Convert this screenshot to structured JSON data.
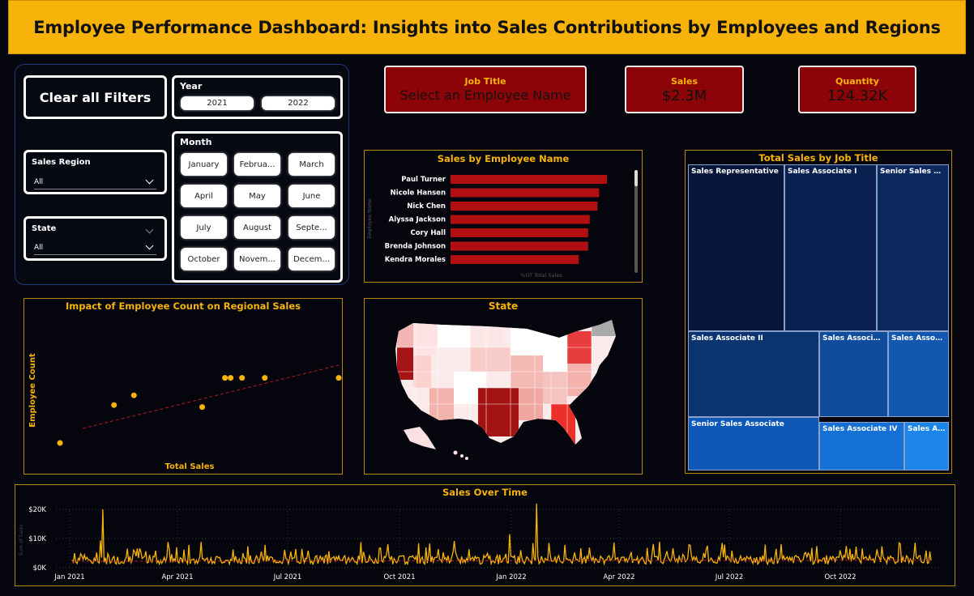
{
  "title": "Employee Performance Dashboard: Insights into Sales Contributions by Employees and Regions",
  "filters": {
    "clear_label": "Clear all Filters",
    "year": {
      "title": "Year",
      "options": [
        "2021",
        "2022"
      ]
    },
    "month": {
      "title": "Month",
      "options": [
        "January",
        "Februa...",
        "March",
        "April",
        "May",
        "June",
        "July",
        "August",
        "Septe...",
        "October",
        "Novem...",
        "Decem..."
      ]
    },
    "sales_region": {
      "title": "Sales Region",
      "value": "All"
    },
    "state": {
      "title": "State",
      "value": "All"
    }
  },
  "kpis": {
    "job_title": {
      "label": "Job Title",
      "value": "Select an Employee Name"
    },
    "sales": {
      "label": "Sales",
      "value": "$2.3M"
    },
    "quantity": {
      "label": "Quantity",
      "value": "124.32K"
    }
  },
  "sales_by_employee": {
    "title": "Sales by Employee Name",
    "y_axis_label": "Employee Name",
    "x_axis_label": "%GT Total Sales",
    "bar_color": "#b10f12"
  },
  "scatter": {
    "title": "Impact of Employee Count on Regional Sales",
    "xlabel": "Total Sales",
    "ylabel": "Employee Count",
    "point_color": "#f7b30a"
  },
  "state_map": {
    "title": "State"
  },
  "treemap": {
    "title": "Total Sales by Job Title",
    "labels": [
      "Sales Representative",
      "Sales Associate I",
      "Senior Sales Re...",
      "Sales Associate II",
      "Sales Associate",
      "Sales Associ...",
      "Senior Sales Associate",
      "Sales Associate IV",
      "Sales As..."
    ],
    "colors": [
      "#07163a",
      "#0a2050",
      "#0d2a60",
      "#0b3470",
      "#0f4d9c",
      "#1258b0",
      "#0e58b8",
      "#1571d6",
      "#1b85ea"
    ]
  },
  "sales_over_time": {
    "title": "Sales Over Time",
    "y_axis_label": "Sum of Sales",
    "line_color": "#f7b30a"
  },
  "chart_data": [
    {
      "type": "bar",
      "title": "Sales by Employee Name",
      "xlabel": "%GT Total Sales",
      "ylabel": "Employee Name",
      "categories": [
        "Paul Turner",
        "Nicole Hansen",
        "Nick Chen",
        "Alyssa Jackson",
        "Cory Hall",
        "Brenda Johnson",
        "Kendra Morales"
      ],
      "values": [
        1.0,
        0.95,
        0.94,
        0.89,
        0.88,
        0.88,
        0.82
      ],
      "value_note_unit": "relative share"
    },
    {
      "type": "scatter",
      "title": "Impact of Employee Count on Regional Sales",
      "xlabel": "Total Sales",
      "ylabel": "Employee Count",
      "points": [
        [
          0.02,
          0.05
        ],
        [
          0.21,
          0.44
        ],
        [
          0.28,
          0.54
        ],
        [
          0.52,
          0.42
        ],
        [
          0.6,
          0.72
        ],
        [
          0.62,
          0.72
        ],
        [
          0.66,
          0.72
        ],
        [
          0.74,
          0.72
        ],
        [
          1.0,
          0.72
        ]
      ],
      "trendline": true
    },
    {
      "type": "line",
      "title": "Sales Over Time",
      "ylabel": "Sum of Sales",
      "x_ticks": [
        "Jan 2021",
        "Apr 2021",
        "Jul 2021",
        "Oct 2021",
        "Jan 2022",
        "Apr 2022",
        "Jul 2022",
        "Oct 2022"
      ],
      "y_ticks": [
        "$0K",
        "$10K",
        "$20K"
      ],
      "ylim": [
        0,
        22000
      ],
      "peaks": [
        {
          "x": "Feb 2021",
          "y": 20000
        },
        {
          "x": "Mar 2022",
          "y": 22000
        }
      ]
    }
  ]
}
